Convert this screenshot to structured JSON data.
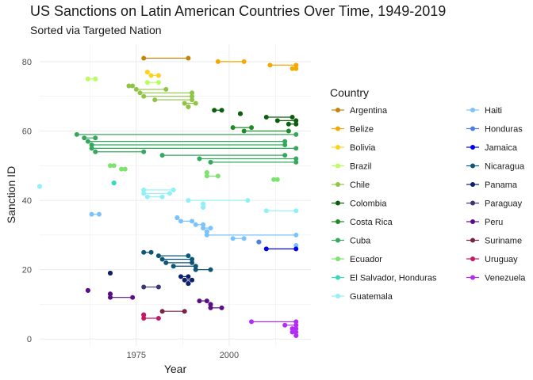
{
  "chart_data": {
    "type": "line",
    "title": "US Sanctions on Latin American Countries Over Time, 1949-2019",
    "subtitle": "Sorted via Targeted Nation",
    "xlabel": "Year",
    "ylabel": "Sanction ID",
    "xlim": [
      1949,
      2022
    ],
    "ylim": [
      -2,
      85
    ],
    "x_ticks": [
      1975,
      2000
    ],
    "y_ticks": [
      0,
      20,
      40,
      60,
      80
    ],
    "grid": true,
    "legend": {
      "title": "Country",
      "placement": "right",
      "columns": 2
    },
    "series": [
      {
        "name": "Argentina",
        "color": "#c0860c",
        "segments": [
          [
            81,
            1977,
            1989
          ]
        ]
      },
      {
        "name": "Belize",
        "color": "#f5a900",
        "segments": [
          [
            80,
            1997,
            2004
          ],
          [
            79,
            2011,
            2018
          ],
          [
            78,
            2017,
            2018
          ]
        ]
      },
      {
        "name": "Bolivia",
        "color": "#ffd21a",
        "segments": [
          [
            77,
            1978,
            1978
          ],
          [
            76,
            1979,
            1981
          ]
        ]
      },
      {
        "name": "Brazil",
        "color": "#b7ff5f",
        "segments": [
          [
            75,
            1962,
            1964
          ],
          [
            74,
            1978,
            1981
          ]
        ]
      },
      {
        "name": "Chile",
        "color": "#8fc446",
        "segments": [
          [
            73,
            1973,
            1974
          ],
          [
            72,
            1975,
            1983
          ],
          [
            71,
            1976,
            1990
          ],
          [
            70,
            1977,
            1990
          ],
          [
            69,
            1980,
            1990
          ],
          [
            68,
            1988,
            1991
          ],
          [
            67,
            1989,
            1989
          ]
        ]
      },
      {
        "name": "Colombia",
        "color": "#0b5e0b",
        "segments": [
          [
            66,
            1996,
            1998
          ],
          [
            65,
            2003,
            2003
          ],
          [
            64,
            2010,
            2017
          ],
          [
            63,
            2013,
            2018
          ],
          [
            62,
            2016,
            2018
          ]
        ]
      },
      {
        "name": "Costa Rica",
        "color": "#1f8a28",
        "segments": [
          [
            61,
            2001,
            2006
          ],
          [
            60,
            2004,
            2016
          ]
        ]
      },
      {
        "name": "Cuba",
        "color": "#36a85e",
        "segments": [
          [
            59,
            1959,
            2018
          ],
          [
            58,
            1961,
            1964
          ],
          [
            57,
            1962,
            2015
          ],
          [
            56,
            1963,
            2015
          ],
          [
            55,
            1963,
            2018
          ],
          [
            54,
            1964,
            1977
          ],
          [
            53,
            1982,
            2015
          ],
          [
            52,
            1992,
            2018
          ],
          [
            51,
            1995,
            2018
          ]
        ]
      },
      {
        "name": "Ecuador",
        "color": "#7ce36e",
        "segments": [
          [
            50,
            1968,
            1969
          ],
          [
            49,
            1971,
            1972
          ],
          [
            48,
            1994,
            1994
          ],
          [
            47,
            1994,
            1997
          ],
          [
            46,
            2012,
            2013
          ]
        ]
      },
      {
        "name": "El Salvador, Honduras",
        "color": "#36d9b8",
        "segments": [
          [
            45,
            1969,
            1969
          ]
        ]
      },
      {
        "name": "Guatemala",
        "color": "#8ff0f7",
        "segments": [
          [
            44,
            1949,
            1949
          ],
          [
            43,
            1977,
            1985
          ],
          [
            42,
            1977,
            1984
          ],
          [
            41,
            1978,
            1982
          ],
          [
            40,
            1989,
            2005
          ],
          [
            39,
            1993,
            1993
          ],
          [
            38,
            1993,
            1993
          ],
          [
            37,
            2010,
            2018
          ]
        ]
      },
      {
        "name": "Haiti",
        "color": "#7ac3ff",
        "segments": [
          [
            36,
            1963,
            1965
          ],
          [
            35,
            1986,
            1986
          ],
          [
            34,
            1987,
            1990
          ],
          [
            33,
            1991,
            1993
          ],
          [
            32,
            1993,
            1995
          ],
          [
            31,
            1994,
            1994
          ],
          [
            30,
            1994,
            2018
          ],
          [
            29,
            2001,
            2004
          ],
          [
            27,
            2018,
            2018
          ]
        ]
      },
      {
        "name": "Honduras",
        "color": "#4c7fe0",
        "segments": [
          [
            28,
            2008,
            2008
          ]
        ]
      },
      {
        "name": "Jamaica",
        "color": "#0000f0",
        "segments": [
          [
            26,
            2010,
            2018
          ]
        ]
      },
      {
        "name": "Nicaragua",
        "color": "#0d5676",
        "segments": [
          [
            25,
            1977,
            1979
          ],
          [
            24,
            1981,
            1989
          ],
          [
            23,
            1982,
            1990
          ],
          [
            22,
            1983,
            1990
          ],
          [
            21,
            1985,
            1991
          ],
          [
            20,
            1991,
            1995
          ]
        ]
      },
      {
        "name": "Panama",
        "color": "#0d1e6b",
        "segments": [
          [
            19,
            1968,
            1968
          ],
          [
            18,
            1987,
            1989
          ],
          [
            17,
            1988,
            1990
          ],
          [
            16,
            1989,
            1989
          ]
        ]
      },
      {
        "name": "Paraguay",
        "color": "#3a3675",
        "segments": [
          [
            15,
            1977,
            1981
          ]
        ]
      },
      {
        "name": "Peru",
        "color": "#5a0d85",
        "segments": [
          [
            14,
            1962,
            1962
          ],
          [
            13,
            1968,
            1968
          ],
          [
            12,
            1968,
            1974
          ],
          [
            11,
            1992,
            1994
          ],
          [
            10,
            1995,
            1995
          ],
          [
            9,
            1995,
            1998
          ]
        ]
      },
      {
        "name": "Suriname",
        "color": "#7a2245",
        "segments": [
          [
            8,
            1982,
            1988
          ]
        ]
      },
      {
        "name": "Uruguay",
        "color": "#c21866",
        "segments": [
          [
            7,
            1977,
            1977
          ],
          [
            6,
            1977,
            1981
          ]
        ]
      },
      {
        "name": "Venezuela",
        "color": "#b32cf2",
        "segments": [
          [
            5,
            2006,
            2018
          ],
          [
            4,
            2015,
            2018
          ],
          [
            3,
            2017,
            2018
          ],
          [
            2,
            2017,
            2018
          ],
          [
            1,
            2018,
            2018
          ]
        ]
      }
    ]
  }
}
